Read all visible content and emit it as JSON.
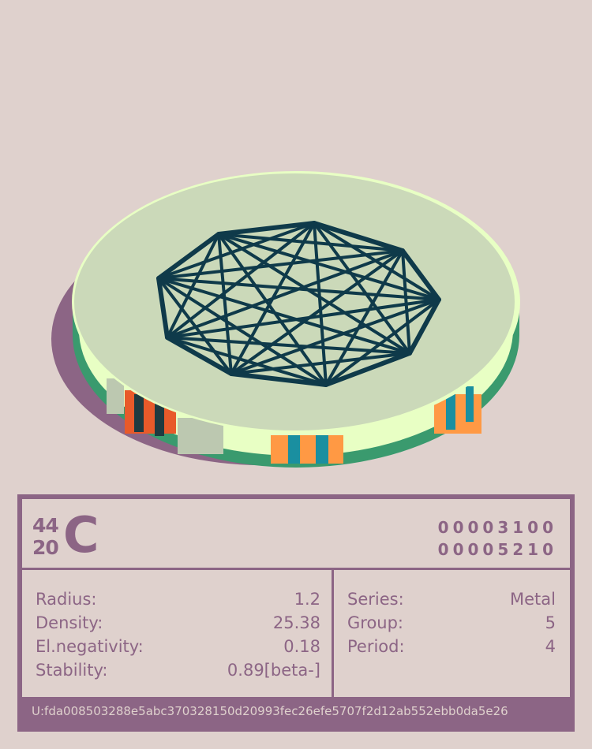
{
  "colors": {
    "background": "#dfd1cd",
    "accent": "#8c6585",
    "disc_top": "#cbd9b9",
    "disc_side": "#e8ffc4",
    "disc_edge": "#3a9a6e",
    "graph": "#0f3a4a"
  },
  "element": {
    "mass_number": "44",
    "atomic_number": "20",
    "symbol": "C",
    "code_line_1": "00003100",
    "code_line_2": "00005210"
  },
  "properties_left": [
    {
      "label": "Radius:",
      "value": "1.2"
    },
    {
      "label": "Density:",
      "value": "25.38"
    },
    {
      "label": "El.negativity:",
      "value": "0.18"
    },
    {
      "label": "Stability:",
      "value": "0.89[beta-]"
    }
  ],
  "properties_right": [
    {
      "label": "Series:",
      "value": "Metal"
    },
    {
      "label": "Group:",
      "value": "5"
    },
    {
      "label": "Period:",
      "value": "4"
    }
  ],
  "footer": {
    "uid": "U:fda008503288e5abc370328150d20993fec26efe5707f2d12ab552ebb0da5e26"
  }
}
